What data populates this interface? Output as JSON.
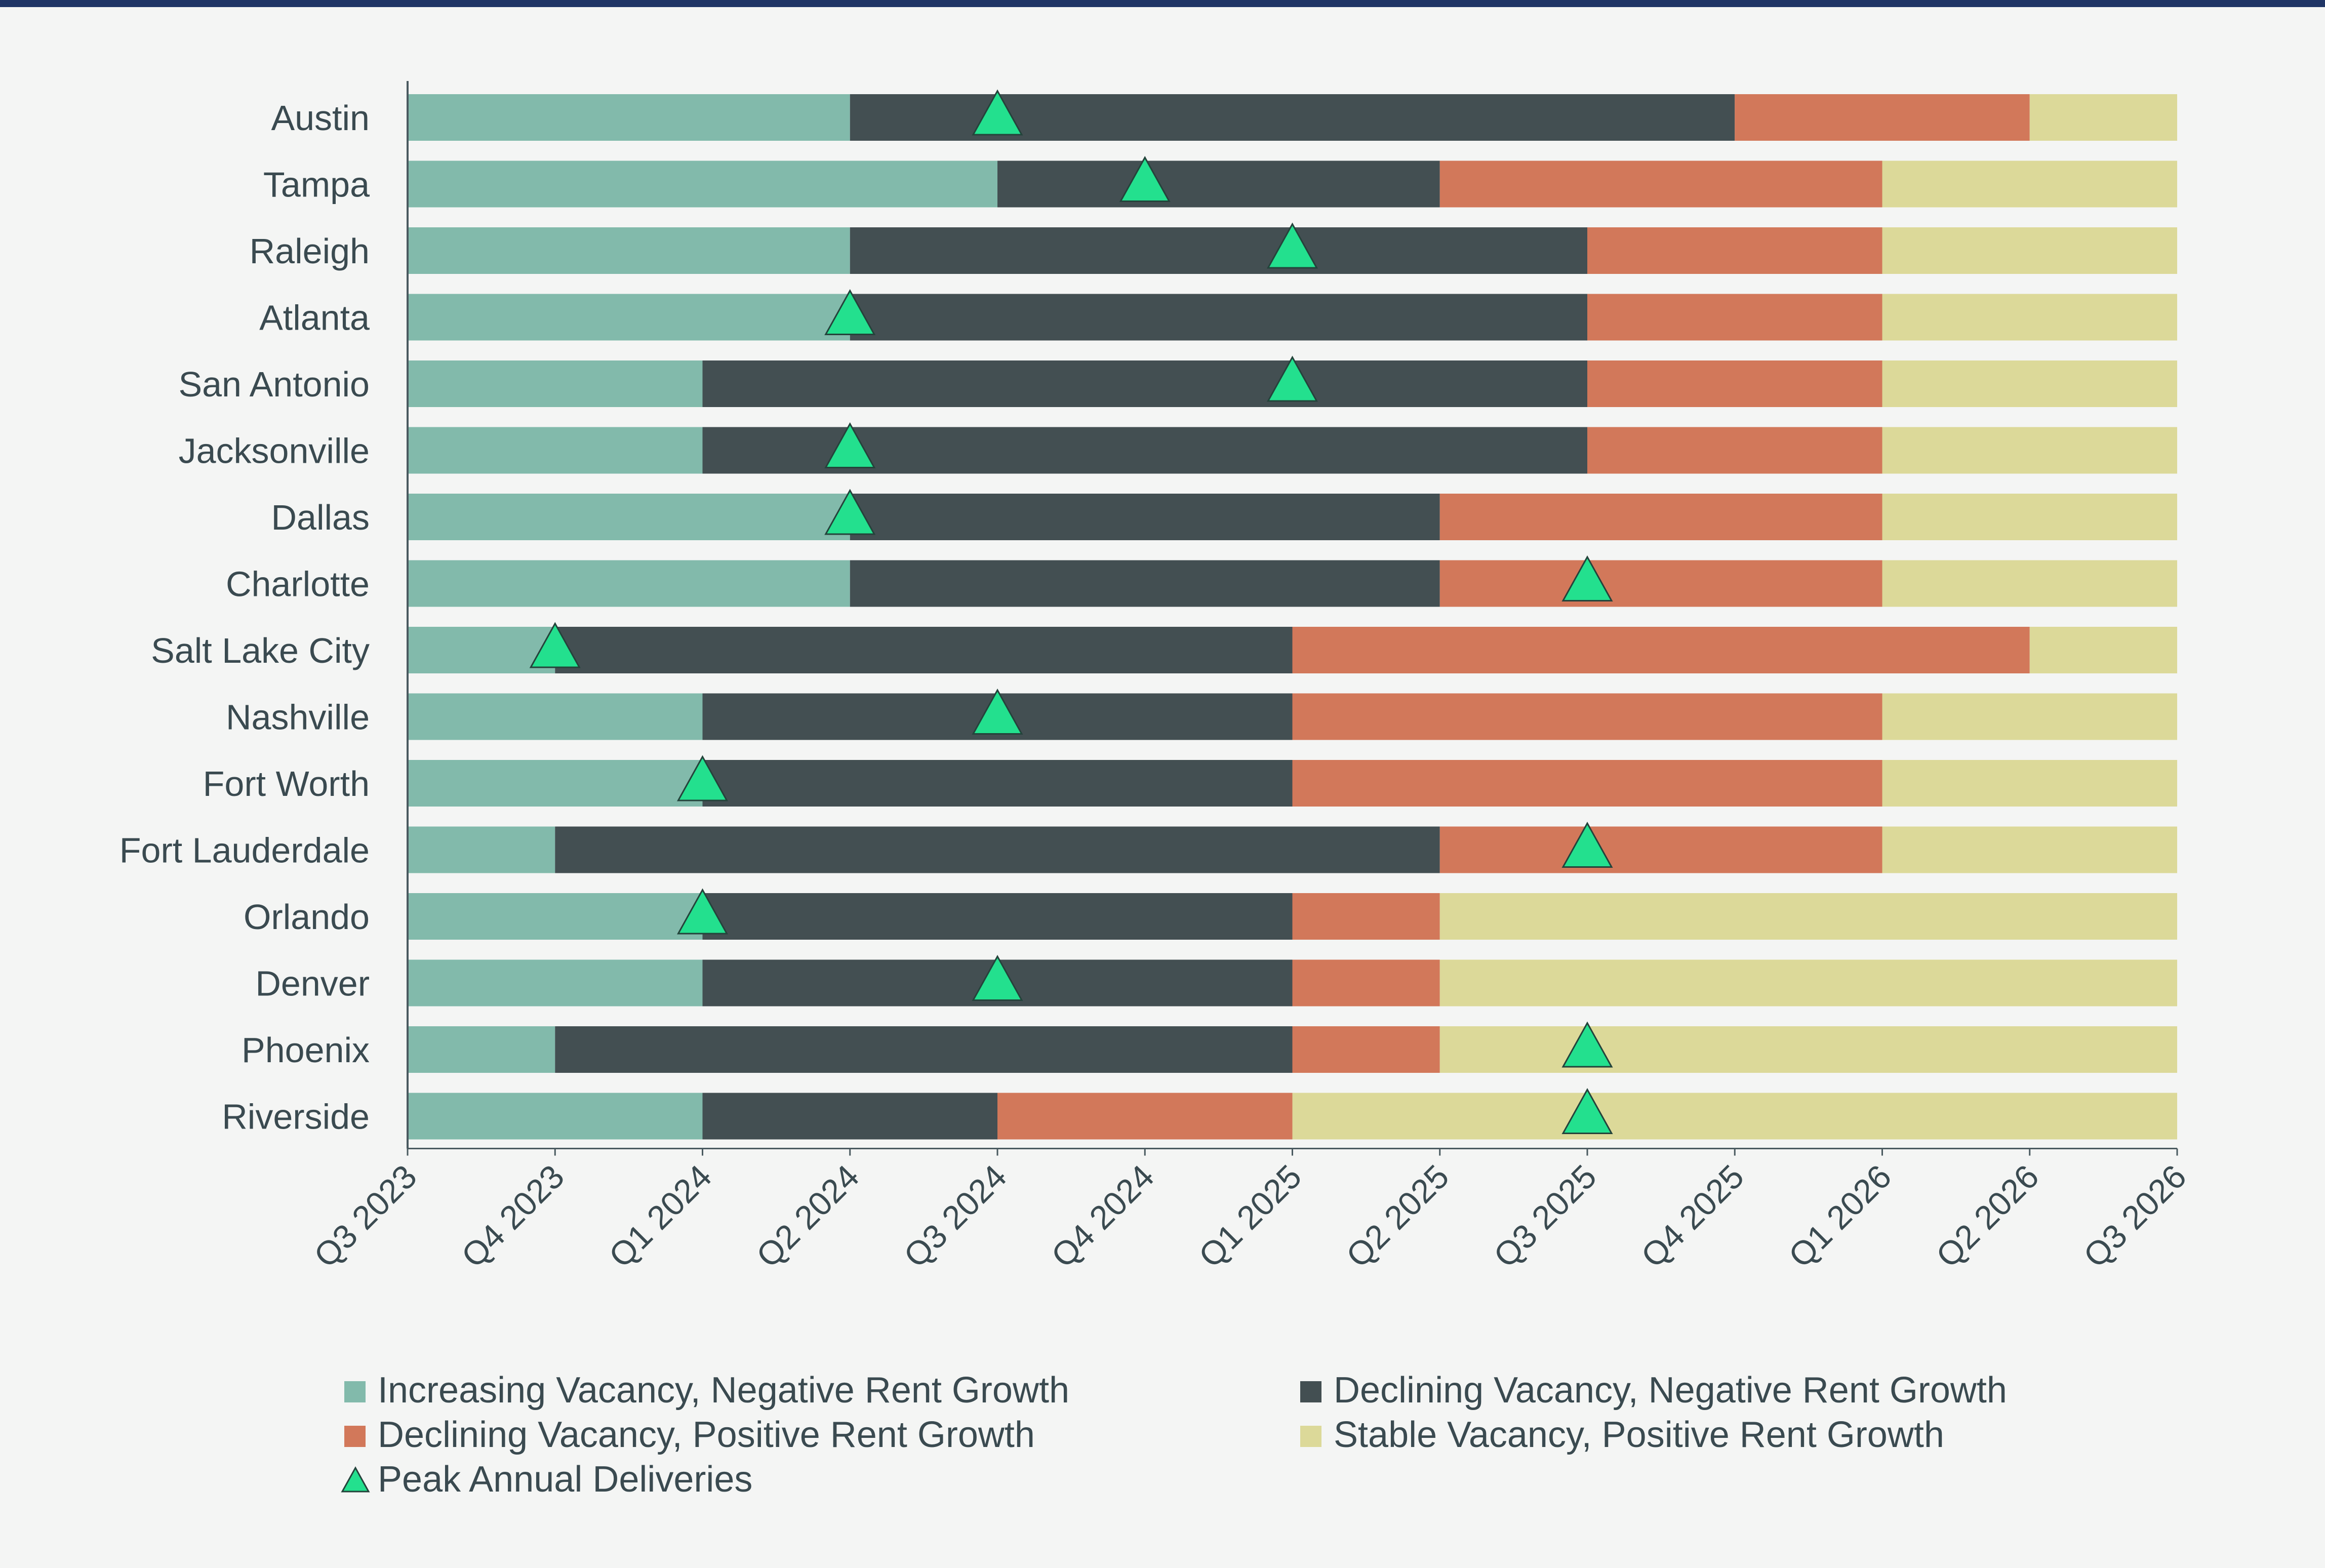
{
  "chart_data": {
    "type": "timeline",
    "title": "",
    "xlabel": "",
    "ylabel": "",
    "x_ticks": [
      "Q3 2023",
      "Q4 2023",
      "Q1 2024",
      "Q2 2024",
      "Q3 2024",
      "Q4 2024",
      "Q1 2025",
      "Q2 2025",
      "Q3 2025",
      "Q4 2025",
      "Q1 2026",
      "Q2 2026",
      "Q3 2026"
    ],
    "colors": {
      "increasing_negative": "#82baab",
      "declining_negative": "#434f52",
      "declining_positive": "#d2785a",
      "stable_positive": "#dcd999",
      "peak": "#23e08e",
      "axis": "#4a5a60",
      "text": "#3a4a50"
    },
    "phases": [
      {
        "key": "increasing_negative",
        "label": "Increasing Vacancy, Negative Rent Growth"
      },
      {
        "key": "declining_negative",
        "label": "Declining Vacancy, Negative Rent Growth"
      },
      {
        "key": "declining_positive",
        "label": "Declining Vacancy, Positive Rent Growth"
      },
      {
        "key": "stable_positive",
        "label": "Stable Vacancy, Positive Rent Growth"
      }
    ],
    "peak_label": "Peak Annual Deliveries",
    "markets": [
      {
        "name": "Austin",
        "boundaries": [
          0,
          3,
          9,
          11,
          12
        ],
        "peak": 4
      },
      {
        "name": "Tampa",
        "boundaries": [
          0,
          4,
          7,
          10,
          12
        ],
        "peak": 5
      },
      {
        "name": "Raleigh",
        "boundaries": [
          0,
          3,
          8,
          10,
          12
        ],
        "peak": 6
      },
      {
        "name": "Atlanta",
        "boundaries": [
          0,
          3,
          8,
          10,
          12
        ],
        "peak": 3
      },
      {
        "name": "San Antonio",
        "boundaries": [
          0,
          2,
          8,
          10,
          12
        ],
        "peak": 6
      },
      {
        "name": "Jacksonville",
        "boundaries": [
          0,
          2,
          8,
          10,
          12
        ],
        "peak": 3
      },
      {
        "name": "Dallas",
        "boundaries": [
          0,
          3,
          7,
          10,
          12
        ],
        "peak": 3
      },
      {
        "name": "Charlotte",
        "boundaries": [
          0,
          3,
          7,
          10,
          12
        ],
        "peak": 8
      },
      {
        "name": "Salt Lake City",
        "boundaries": [
          0,
          1,
          6,
          11,
          12
        ],
        "peak": 1
      },
      {
        "name": "Nashville",
        "boundaries": [
          0,
          2,
          6,
          10,
          12
        ],
        "peak": 4
      },
      {
        "name": "Fort Worth",
        "boundaries": [
          0,
          2,
          6,
          10,
          12
        ],
        "peak": 2
      },
      {
        "name": "Fort Lauderdale",
        "boundaries": [
          0,
          1,
          7,
          10,
          12
        ],
        "peak": 8
      },
      {
        "name": "Orlando",
        "boundaries": [
          0,
          2,
          6,
          7,
          12
        ],
        "peak": 2
      },
      {
        "name": "Denver",
        "boundaries": [
          0,
          2,
          6,
          7,
          12
        ],
        "peak": 4
      },
      {
        "name": "Phoenix",
        "boundaries": [
          0,
          1,
          6,
          7,
          12
        ],
        "peak": 8
      },
      {
        "name": "Riverside",
        "boundaries": [
          0,
          2,
          4,
          6,
          12
        ],
        "peak": 8
      }
    ]
  }
}
